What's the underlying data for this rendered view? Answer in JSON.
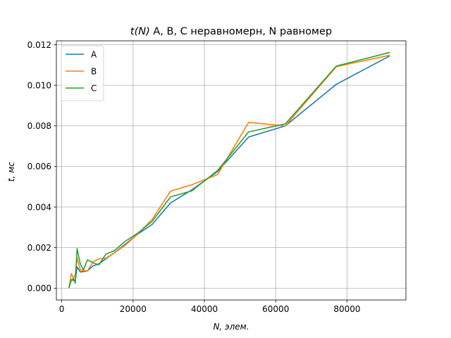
{
  "chart_data": {
    "type": "line",
    "title": "t(N) A, B, C неравномерн, N равномер",
    "title_italic_part": "t(N)",
    "title_rest": " A, B, C неравномерн, N равномер",
    "xlabel": "N, элем.",
    "ylabel": "t, мс",
    "xlim": [
      -1500,
      96500
    ],
    "ylim": [
      -0.00058,
      0.01219
    ],
    "xticks": [
      0,
      20000,
      40000,
      60000,
      80000
    ],
    "xtick_labels": [
      "0",
      "20000",
      "40000",
      "60000",
      "80000"
    ],
    "yticks": [
      0.0,
      0.002,
      0.004,
      0.006,
      0.008,
      0.01,
      0.012
    ],
    "ytick_labels": [
      "0.000",
      "0.002",
      "0.004",
      "0.006",
      "0.008",
      "0.010",
      "0.012"
    ],
    "grid": true,
    "legend_position": "upper-left",
    "series": [
      {
        "name": "A",
        "color": "#1f77b4",
        "x": [
          2000,
          2700,
          3300,
          3800,
          4300,
          5200,
          6100,
          7200,
          8800,
          10400,
          12400,
          14800,
          17700,
          21200,
          25400,
          30500,
          36500,
          43700,
          52400,
          62700,
          77000,
          92000
        ],
        "y": [
          0.0,
          0.00042,
          0.00038,
          0.00035,
          0.00105,
          0.0008,
          0.00082,
          0.00085,
          0.0011,
          0.0012,
          0.00145,
          0.00175,
          0.00215,
          0.00265,
          0.00315,
          0.0042,
          0.00485,
          0.00575,
          0.00745,
          0.008,
          0.01005,
          0.01145
        ]
      },
      {
        "name": "B",
        "color": "#ff7f0e",
        "x": [
          2000,
          2700,
          3300,
          3800,
          4300,
          5200,
          6100,
          7200,
          8800,
          10400,
          12400,
          14800,
          17700,
          21200,
          25400,
          30500,
          36500,
          43700,
          52400,
          62700,
          77000,
          92000
        ],
        "y": [
          0.0,
          0.00072,
          0.0005,
          0.00065,
          0.0015,
          0.0009,
          0.00087,
          0.00085,
          0.0013,
          0.00145,
          0.00148,
          0.00175,
          0.0021,
          0.00265,
          0.0034,
          0.00478,
          0.0051,
          0.0056,
          0.00817,
          0.008,
          0.01092,
          0.01148
        ]
      },
      {
        "name": "C",
        "color": "#2ca02c",
        "x": [
          2000,
          2700,
          3300,
          3800,
          4300,
          5200,
          6100,
          7200,
          8800,
          10400,
          12400,
          14800,
          17700,
          21200,
          25400,
          30500,
          36500,
          43700,
          52400,
          62700,
          77000,
          92000
        ],
        "y": [
          0.0,
          0.0004,
          0.00048,
          0.00025,
          0.00195,
          0.0012,
          0.0009,
          0.0014,
          0.00125,
          0.00115,
          0.00168,
          0.00185,
          0.0023,
          0.0027,
          0.0033,
          0.0045,
          0.0048,
          0.0058,
          0.0077,
          0.0081,
          0.01095,
          0.01162
        ]
      }
    ]
  }
}
